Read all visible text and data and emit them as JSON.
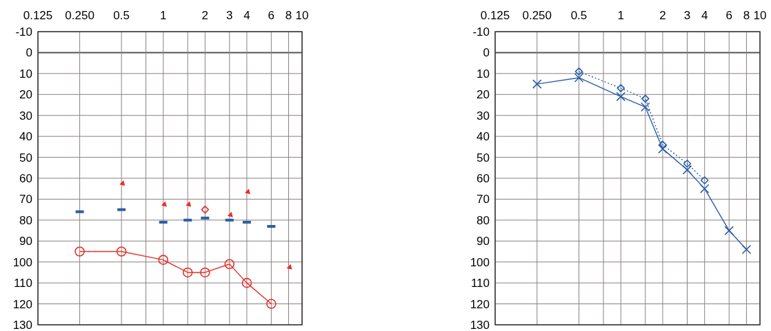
{
  "chart_data": [
    {
      "type": "line",
      "log": "x",
      "grid": true,
      "xlim": [
        0.125,
        10
      ],
      "xticks": [
        0.125,
        {
          "value": 0.25,
          "label": "0.250"
        },
        0.5,
        {
          "value": 0.75,
          "label": null
        },
        1,
        {
          "value": 1.5,
          "label": null
        },
        2,
        3,
        4,
        6,
        8,
        10
      ],
      "ylim": [
        130,
        -10
      ],
      "yticks": [
        -10,
        0,
        10,
        20,
        30,
        40,
        50,
        60,
        70,
        80,
        90,
        100,
        110,
        120,
        130
      ],
      "series": [
        {
          "type": "line",
          "color": "#e8302a",
          "marker": "circle",
          "x": [
            0.25,
            0.5,
            1,
            1.5,
            2,
            3,
            4,
            6
          ],
          "values": [
            95,
            95,
            99,
            105,
            105,
            101,
            110,
            120
          ]
        },
        {
          "type": "scatter",
          "color": "#2a5ea8",
          "marker": "square",
          "x": [
            0.25,
            0.5,
            1,
            1.5,
            2,
            3,
            4,
            6
          ],
          "values": [
            76,
            75,
            81,
            80,
            79,
            80,
            81,
            83
          ]
        },
        {
          "type": "scatter",
          "color": "#e8302a",
          "marker": "triangle",
          "x": [
            0.5,
            1,
            1.5,
            3,
            4,
            8
          ],
          "values": [
            62,
            72,
            72,
            77,
            66,
            102
          ]
        },
        {
          "type": "scatter",
          "color": "#e8302a",
          "marker": "diamond",
          "x": [
            2
          ],
          "values": [
            75
          ]
        }
      ]
    },
    {
      "type": "line",
      "log": "x",
      "grid": true,
      "xlim": [
        0.125,
        10
      ],
      "xticks": [
        0.125,
        {
          "value": 0.25,
          "label": "0.250"
        },
        0.5,
        {
          "value": 0.75,
          "label": null
        },
        1,
        {
          "value": 1.5,
          "label": null
        },
        2,
        3,
        4,
        6,
        8,
        10
      ],
      "ylim": [
        130,
        -10
      ],
      "yticks": [
        -10,
        0,
        10,
        20,
        30,
        40,
        50,
        60,
        70,
        80,
        90,
        100,
        110,
        120,
        130
      ],
      "series": [
        {
          "type": "line",
          "color": "#2a5ea8",
          "marker": "cross",
          "line_style": "solid",
          "x": [
            0.25,
            0.5,
            1,
            1.5,
            2,
            3,
            4,
            6,
            8
          ],
          "values": [
            15,
            12,
            21,
            26,
            46,
            56,
            65,
            85,
            94
          ]
        },
        {
          "type": "line",
          "color": "#2a5ea8",
          "marker": "diamond",
          "line_style": "dotted",
          "x": [
            0.5,
            1,
            1.5,
            2,
            3,
            4
          ],
          "values": [
            9,
            17,
            22,
            44,
            53,
            61
          ]
        }
      ]
    }
  ]
}
